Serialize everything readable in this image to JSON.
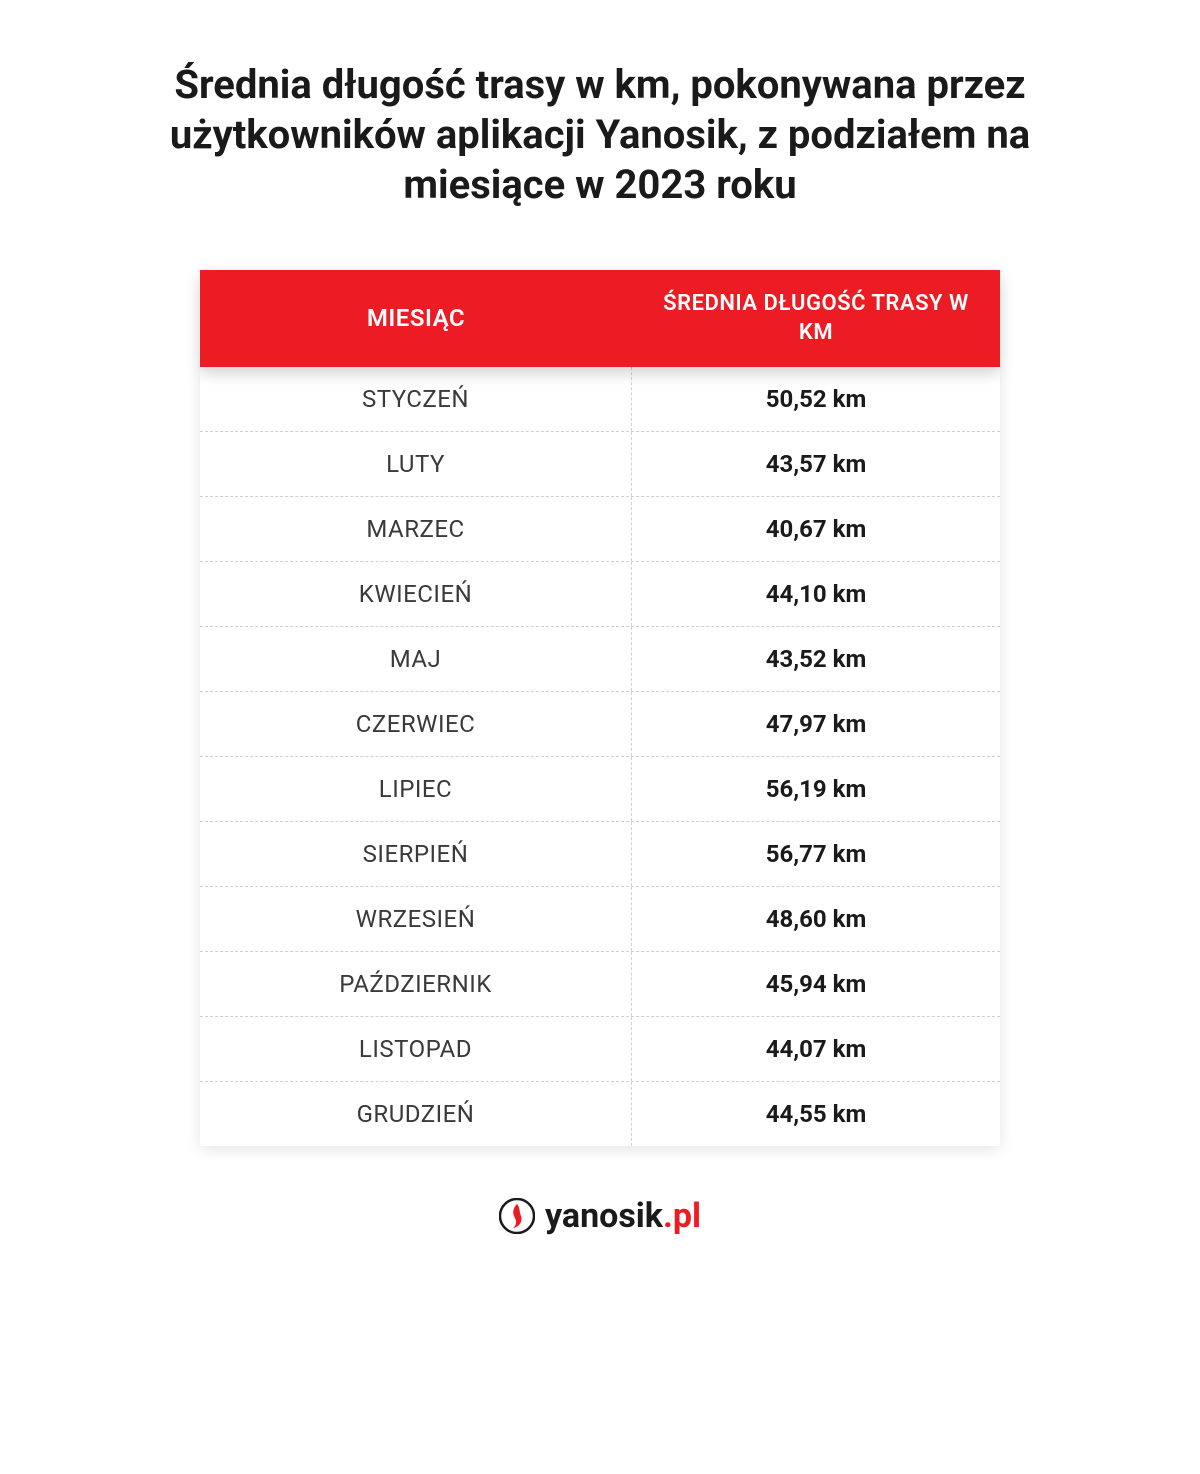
{
  "title": "Średnia długość trasy w km, pokonywana przez użytkowników aplikacji Yanosik, z podziałem na miesiące w 2023 roku",
  "table": {
    "type": "table",
    "header_bg": "#ed1c24",
    "header_text_color": "#ffffff",
    "row_border_color": "#d0d0d0",
    "month_text_color": "#3a3a3a",
    "value_text_color": "#1a1a1a",
    "header_fontsize": 24,
    "cell_fontsize": 24,
    "columns": [
      {
        "key": "month",
        "label": "MIESIĄC",
        "width_pct": 54,
        "align": "center"
      },
      {
        "key": "value",
        "label": "ŚREDNIA DŁUGOŚĆ TRASY W KM",
        "width_pct": 46,
        "align": "center"
      }
    ],
    "rows": [
      {
        "month": "STYCZEŃ",
        "value": "50,52 km"
      },
      {
        "month": "LUTY",
        "value": "43,57 km"
      },
      {
        "month": "MARZEC",
        "value": "40,67 km"
      },
      {
        "month": "KWIECIEŃ",
        "value": "44,10 km"
      },
      {
        "month": "MAJ",
        "value": "43,52 km"
      },
      {
        "month": "CZERWIEC",
        "value": "47,97 km"
      },
      {
        "month": "LIPIEC",
        "value": "56,19 km"
      },
      {
        "month": "SIERPIEŃ",
        "value": "56,77 km"
      },
      {
        "month": "WRZESIEŃ",
        "value": "48,60 km"
      },
      {
        "month": "PAŹDZIERNIK",
        "value": "45,94 km"
      },
      {
        "month": "LISTOPAD",
        "value": "44,07 km"
      },
      {
        "month": "GRUDZIEŃ",
        "value": "44,55 km"
      }
    ]
  },
  "logo": {
    "brand": "yanosik",
    "tld": ".pl",
    "brand_color": "#1a1a1a",
    "accent_color": "#ed1c24",
    "mark_outer": "#1a1a1a",
    "mark_inner": "#ed1c24"
  }
}
